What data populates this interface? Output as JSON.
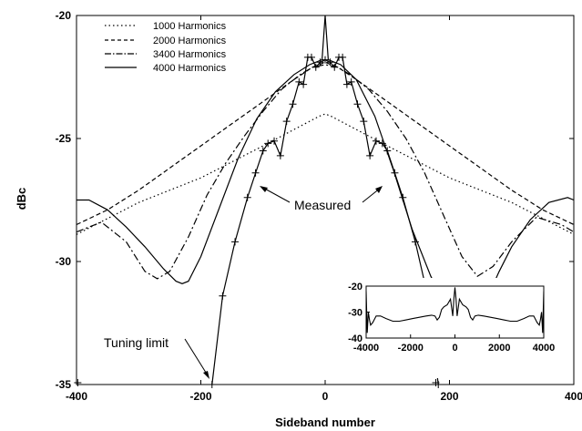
{
  "chart_data": {
    "type": "line",
    "xlabel": "Sideband number",
    "ylabel": "dBc",
    "xlim": [
      -400,
      400
    ],
    "ylim": [
      -35,
      -20
    ],
    "xticks": [
      "-400",
      "-200",
      "0",
      "200",
      "400"
    ],
    "yticks": [
      "-20",
      "-25",
      "-30",
      "-35"
    ],
    "legend_position": "top-left",
    "series": [
      {
        "name": "1000 Harmonics",
        "style": "dotted",
        "x": [
          -400,
          -300,
          -200,
          -100,
          -40,
          -10,
          0,
          10,
          40,
          100,
          200,
          300,
          400
        ],
        "y": [
          -28.9,
          -27.6,
          -26.6,
          -25.3,
          -24.5,
          -24.1,
          -24.0,
          -24.1,
          -24.5,
          -25.3,
          -26.6,
          -27.6,
          -28.9
        ]
      },
      {
        "name": "2000 Harmonics",
        "style": "dashed",
        "x": [
          -400,
          -350,
          -300,
          -250,
          -200,
          -150,
          -100,
          -50,
          -20,
          0,
          20,
          50,
          100,
          150,
          200,
          250,
          300,
          350,
          400
        ],
        "y": [
          -28.5,
          -27.9,
          -27.1,
          -26.2,
          -25.3,
          -24.4,
          -23.5,
          -22.6,
          -22.1,
          -21.9,
          -22.1,
          -22.6,
          -23.5,
          -24.4,
          -25.3,
          -26.2,
          -27.1,
          -27.9,
          -28.5
        ]
      },
      {
        "name": "3400 Harmonics",
        "style": "dashdot",
        "x": [
          -400,
          -360,
          -320,
          -290,
          -270,
          -250,
          -220,
          -190,
          -160,
          -130,
          -100,
          -70,
          -40,
          -20,
          0,
          20,
          40,
          70,
          100,
          130,
          160,
          190,
          220,
          245,
          270,
          300,
          340,
          380,
          400
        ],
        "y": [
          -28.8,
          -28.4,
          -29.2,
          -30.4,
          -30.7,
          -30.4,
          -29.0,
          -27.3,
          -26.0,
          -24.9,
          -23.9,
          -23.0,
          -22.4,
          -22.1,
          -22.0,
          -22.1,
          -22.4,
          -23.0,
          -23.9,
          -25.0,
          -26.4,
          -28.1,
          -29.8,
          -30.6,
          -30.2,
          -29.2,
          -28.2,
          -28.5,
          -28.8
        ]
      },
      {
        "name": "4000 Harmonics",
        "style": "solid",
        "x": [
          -400,
          -380,
          -350,
          -320,
          -290,
          -260,
          -240,
          -230,
          -220,
          -200,
          -170,
          -140,
          -110,
          -80,
          -50,
          -25,
          -5,
          0,
          5,
          25,
          50,
          80,
          110,
          140,
          170,
          195
        ],
        "y": [
          -27.5,
          -27.5,
          -27.9,
          -28.6,
          -29.4,
          -30.3,
          -30.8,
          -30.9,
          -30.8,
          -29.8,
          -27.8,
          -25.8,
          -24.2,
          -23.1,
          -22.4,
          -22.0,
          -21.8,
          -20.0,
          -21.8,
          -22.0,
          -22.6,
          -24.1,
          -26.3,
          -28.7,
          -30.6,
          -31.8
        ]
      },
      {
        "name": "4000 Harmonics right",
        "style": "solid",
        "x": [
          255,
          280,
          300,
          330,
          360,
          390,
          400
        ],
        "y": [
          -31.8,
          -30.4,
          -29.4,
          -28.3,
          -27.6,
          -27.4,
          -27.5
        ]
      },
      {
        "name": "Measured",
        "style": "solid-markers",
        "x": [
          -182,
          -165,
          -145,
          -125,
          -112,
          -100,
          -92,
          -82,
          -72,
          -62,
          -52,
          -42,
          -35,
          -28,
          -22,
          -15,
          -8,
          0,
          8,
          15,
          22,
          28,
          35,
          42,
          52,
          62,
          72,
          82,
          92,
          100,
          112,
          125,
          145,
          165,
          182
        ],
        "y": [
          -35.0,
          -31.4,
          -29.2,
          -27.4,
          -26.4,
          -25.5,
          -25.2,
          -25.1,
          -25.7,
          -24.3,
          -23.6,
          -22.7,
          -22.8,
          -21.7,
          -21.7,
          -22.1,
          -21.9,
          -21.8,
          -21.9,
          -22.1,
          -21.7,
          -21.7,
          -22.8,
          -22.7,
          -23.6,
          -24.3,
          -25.7,
          -25.1,
          -25.2,
          -25.5,
          -26.4,
          -27.4,
          -29.2,
          -31.4,
          -35.0
        ]
      }
    ],
    "inset": {
      "xlim": [
        -4000,
        4000
      ],
      "ylim": [
        -40,
        -20
      ],
      "xticks": [
        "-4000",
        "-2000",
        "0",
        "2000",
        "4000"
      ],
      "yticks": [
        "-20",
        "-30",
        "-40"
      ],
      "x": [
        -4000,
        -3950,
        -3900,
        -3850,
        -3800,
        -3700,
        -3550,
        -3350,
        -3100,
        -2800,
        -2500,
        -2200,
        -1900,
        -1600,
        -1300,
        -1050,
        -900,
        -800,
        -700,
        -600,
        -500,
        -350,
        -200,
        -100,
        -50,
        0,
        50,
        100,
        200,
        350,
        500,
        600,
        700,
        800,
        900,
        1050,
        1300,
        1600,
        1900,
        2200,
        2500,
        2800,
        3100,
        3350,
        3550,
        3700,
        3800,
        3850,
        3900,
        3950,
        4000
      ],
      "y": [
        -22,
        -38,
        -30,
        -33,
        -35,
        -34,
        -31.5,
        -31.5,
        -32.5,
        -33.5,
        -33.5,
        -33,
        -32.5,
        -32,
        -31.5,
        -31.2,
        -31.5,
        -33,
        -32,
        -29,
        -28,
        -27.2,
        -25,
        -31.5,
        -25,
        -20.5,
        -25,
        -31.5,
        -25,
        -27.2,
        -28,
        -29,
        -32,
        -33,
        -31.5,
        -31.2,
        -31.5,
        -32,
        -32.5,
        -33,
        -33.5,
        -33.5,
        -32.5,
        -31.5,
        -31.5,
        -34,
        -35,
        -33,
        -30,
        -38,
        -22
      ]
    },
    "annotations": [
      "Measured",
      "Measured",
      "Tuning limit"
    ]
  }
}
